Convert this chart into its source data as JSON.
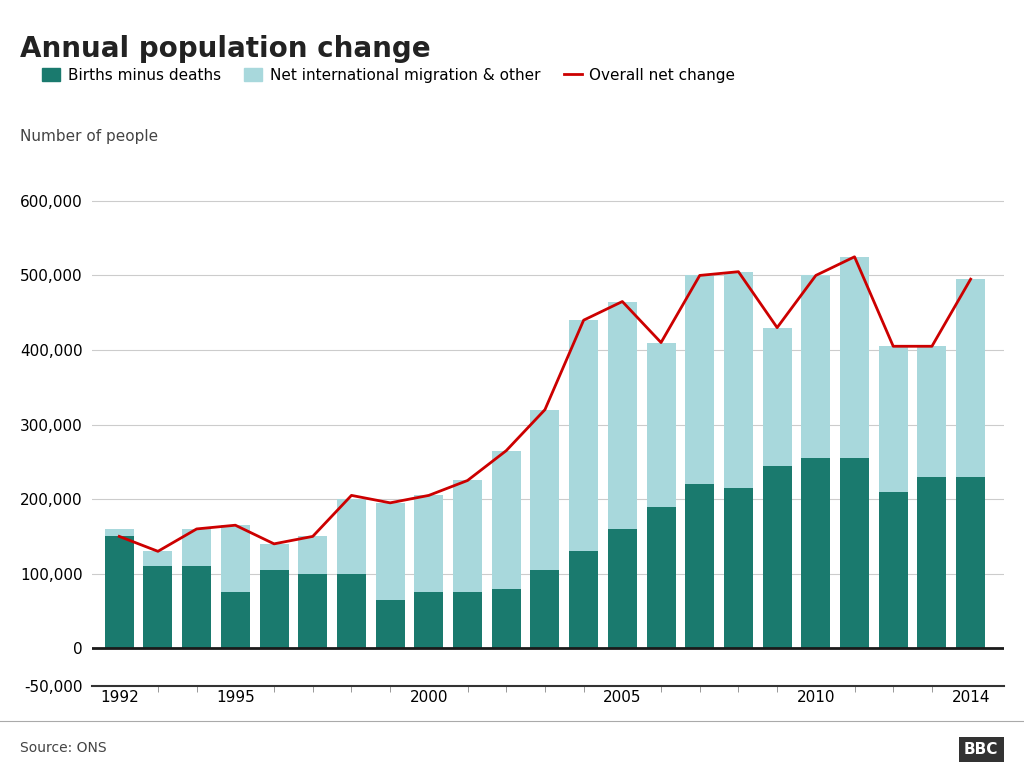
{
  "title": "Annual population change",
  "ylabel": "Number of people",
  "source": "Source: ONS",
  "years": [
    1992,
    1993,
    1994,
    1995,
    1996,
    1997,
    1998,
    1999,
    2000,
    2001,
    2002,
    2003,
    2004,
    2005,
    2006,
    2007,
    2008,
    2009,
    2010,
    2011,
    2012,
    2013,
    2014
  ],
  "births_minus_deaths": [
    160000,
    110000,
    110000,
    75000,
    105000,
    100000,
    100000,
    65000,
    75000,
    75000,
    80000,
    105000,
    130000,
    160000,
    190000,
    220000,
    215000,
    245000,
    255000,
    255000,
    210000,
    230000,
    230000
  ],
  "net_migration": [
    -10000,
    20000,
    50000,
    90000,
    35000,
    50000,
    100000,
    130000,
    130000,
    150000,
    185000,
    215000,
    310000,
    305000,
    220000,
    280000,
    290000,
    185000,
    245000,
    270000,
    195000,
    175000,
    265000
  ],
  "overall_net_change": [
    150000,
    130000,
    160000,
    165000,
    140000,
    150000,
    205000,
    195000,
    205000,
    225000,
    265000,
    320000,
    440000,
    465000,
    410000,
    500000,
    505000,
    430000,
    500000,
    525000,
    405000,
    405000,
    495000
  ],
  "bar_color_births": "#1a7a6e",
  "bar_color_migration": "#a8d8dc",
  "line_color": "#cc0000",
  "ylim_min": -50000,
  "ylim_max": 650000,
  "yticks": [
    -50000,
    0,
    100000,
    200000,
    300000,
    400000,
    500000,
    600000
  ],
  "ytick_labels": [
    "-50,000",
    "0",
    "100,000",
    "200,000",
    "300,000",
    "400,000",
    "500,000",
    "600,000"
  ],
  "background_color": "#ffffff",
  "title_fontsize": 20,
  "legend_fontsize": 11,
  "axis_fontsize": 11,
  "bar_width": 0.75
}
